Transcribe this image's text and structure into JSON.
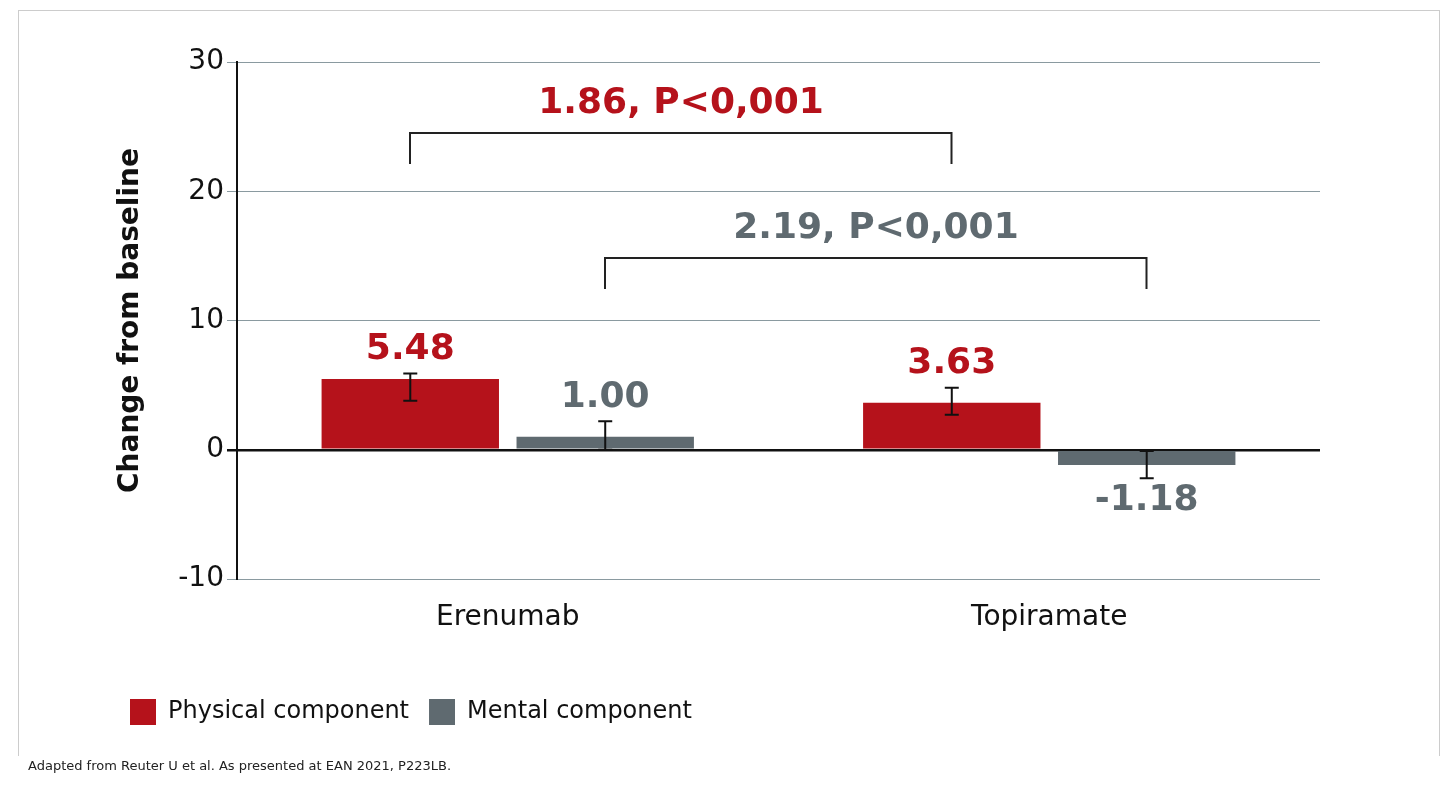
{
  "chart_data": {
    "type": "bar",
    "ylabel": "Change from baseline",
    "categories": [
      "Erenumab",
      "Topiramate"
    ],
    "series": [
      {
        "name": "Physical component",
        "color": "#b5121b",
        "values": [
          5.48,
          3.63
        ],
        "errors": [
          [
            3.8,
            5.9
          ],
          [
            2.7,
            4.8
          ]
        ],
        "value_labels": [
          "5.48",
          "3.63"
        ]
      },
      {
        "name": "Mental component",
        "color": "#5f6a70",
        "values": [
          1.0,
          -1.18
        ],
        "errors": [
          [
            0.0,
            2.2
          ],
          [
            -2.2,
            -0.1
          ]
        ],
        "value_labels": [
          "1.00",
          "-1.18"
        ]
      }
    ],
    "ylim": [
      -10,
      30
    ],
    "yticks": [
      -10,
      0,
      10,
      20,
      30
    ],
    "grid": "y",
    "legend": "bottom left",
    "annotations": [
      "1.86, P<0,001",
      "2.19, P<0,001",
      "Adapted from Reuter U et al. As presented at EAN 2021, P223LB."
    ]
  }
}
